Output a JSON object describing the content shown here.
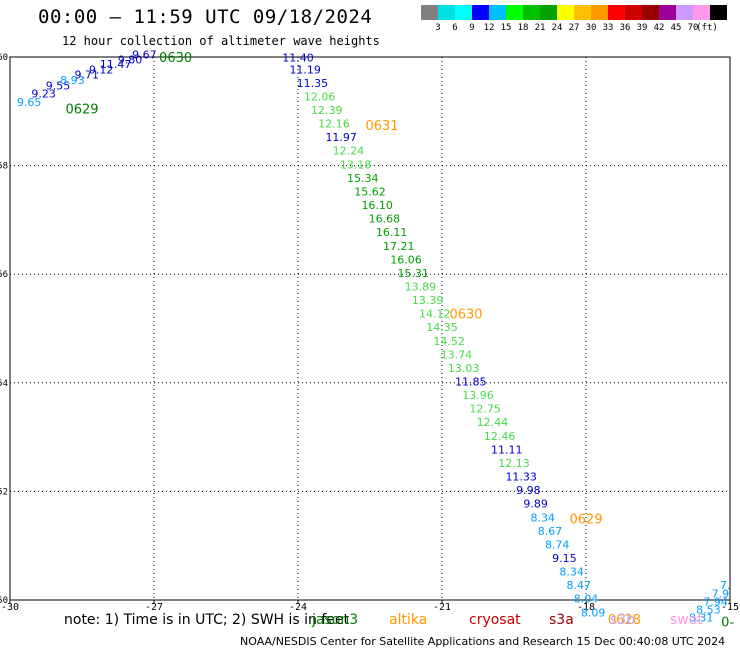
{
  "title": "00:00 – 11:59 UTC 09/18/2024",
  "subtitle": "12 hour collection of altimeter wave heights",
  "note": "note: 1) Time is in UTC; 2) SWH is in feet",
  "footer": "NOAA/NESDIS Center for Satellite Applications and Research   15 Dec 00:40:08 UTC 2024",
  "satellites": [
    {
      "name": "jason3",
      "color": "#008000"
    },
    {
      "name": "altika",
      "color": "#ff9900"
    },
    {
      "name": "cryosat",
      "color": "#cc0000"
    },
    {
      "name": "s3a",
      "color": "#990000"
    },
    {
      "name": "s3b",
      "color": "#c8a0ff"
    },
    {
      "name": "swot",
      "color": "#ff99dd"
    }
  ],
  "colorbar": {
    "unit_label": "(ft)",
    "ticks": [
      "3",
      "6",
      "9",
      "12",
      "15",
      "18",
      "21",
      "24",
      "27",
      "30",
      "33",
      "36",
      "39",
      "42",
      "45",
      "70"
    ],
    "colors": [
      "#808080",
      "#00e0e0",
      "#00ffff",
      "#0000ff",
      "#00c0ff",
      "#00ff00",
      "#00c000",
      "#00a000",
      "#ffff00",
      "#ffc000",
      "#ff9900",
      "#ff0000",
      "#cc0000",
      "#990000",
      "#990099",
      "#cc99ff",
      "#ff99ee",
      "#000000"
    ]
  },
  "chart_data": {
    "type": "scatter",
    "x_ticks": [
      "-30",
      "-27",
      "-24",
      "-21",
      "-18",
      "-15"
    ],
    "y_ticks": [
      "50",
      "52",
      "54",
      "56",
      "58",
      "60"
    ],
    "xlim": [
      -30,
      -15
    ],
    "ylim": [
      50,
      60
    ],
    "grid": true,
    "value_labels": [
      {
        "lon": -29.6,
        "lat": 59.1,
        "text": "9.65",
        "color": "#00a0ff"
      },
      {
        "lon": -29.3,
        "lat": 59.25,
        "text": "9.23",
        "color": "#0000cc"
      },
      {
        "lon": -29.0,
        "lat": 59.4,
        "text": "9.55",
        "color": "#0000cc"
      },
      {
        "lon": -28.7,
        "lat": 59.5,
        "text": "8.93",
        "color": "#00a0ff"
      },
      {
        "lon": -28.4,
        "lat": 59.6,
        "text": "9.71",
        "color": "#0000cc"
      },
      {
        "lon": -28.1,
        "lat": 59.7,
        "text": "9.12",
        "color": "#0000cc"
      },
      {
        "lon": -27.8,
        "lat": 59.8,
        "text": "11.47",
        "color": "#0000cc"
      },
      {
        "lon": -27.5,
        "lat": 59.88,
        "text": "9.80",
        "color": "#0000cc"
      },
      {
        "lon": -27.2,
        "lat": 59.97,
        "text": "9.67",
        "color": "#0000cc"
      },
      {
        "lon": -24.0,
        "lat": 59.92,
        "text": "11.40",
        "color": "#0000cc"
      },
      {
        "lon": -23.85,
        "lat": 59.7,
        "text": "11.19",
        "color": "#0000cc"
      },
      {
        "lon": -23.7,
        "lat": 59.45,
        "text": "11.35",
        "color": "#0000cc"
      },
      {
        "lon": -23.55,
        "lat": 59.2,
        "text": "12.06",
        "color": "#44dd44"
      },
      {
        "lon": -23.4,
        "lat": 58.95,
        "text": "12.39",
        "color": "#44dd44"
      },
      {
        "lon": -23.25,
        "lat": 58.7,
        "text": "12.16",
        "color": "#44dd44"
      },
      {
        "lon": -23.1,
        "lat": 58.45,
        "text": "11.97",
        "color": "#0000cc"
      },
      {
        "lon": -22.95,
        "lat": 58.2,
        "text": "12.24",
        "color": "#44dd44"
      },
      {
        "lon": -22.8,
        "lat": 57.95,
        "text": "13.18",
        "color": "#44dd44"
      },
      {
        "lon": -22.65,
        "lat": 57.7,
        "text": "15.34",
        "color": "#00a000"
      },
      {
        "lon": -22.5,
        "lat": 57.45,
        "text": "15.62",
        "color": "#00a000"
      },
      {
        "lon": -22.35,
        "lat": 57.2,
        "text": "16.10",
        "color": "#00a000"
      },
      {
        "lon": -22.2,
        "lat": 56.95,
        "text": "16.68",
        "color": "#00a000"
      },
      {
        "lon": -22.05,
        "lat": 56.7,
        "text": "16.11",
        "color": "#00a000"
      },
      {
        "lon": -21.9,
        "lat": 56.45,
        "text": "17.21",
        "color": "#00a000"
      },
      {
        "lon": -21.75,
        "lat": 56.2,
        "text": "16.06",
        "color": "#00a000"
      },
      {
        "lon": -21.6,
        "lat": 55.95,
        "text": "15.31",
        "color": "#00a000"
      },
      {
        "lon": -21.45,
        "lat": 55.7,
        "text": "13.89",
        "color": "#44dd44"
      },
      {
        "lon": -21.3,
        "lat": 55.45,
        "text": "13.39",
        "color": "#44dd44"
      },
      {
        "lon": -21.15,
        "lat": 55.2,
        "text": "14.12",
        "color": "#44dd44"
      },
      {
        "lon": -21.0,
        "lat": 54.95,
        "text": "14.35",
        "color": "#44dd44"
      },
      {
        "lon": -20.85,
        "lat": 54.7,
        "text": "14.52",
        "color": "#44dd44"
      },
      {
        "lon": -20.7,
        "lat": 54.45,
        "text": "13.74",
        "color": "#44dd44"
      },
      {
        "lon": -20.55,
        "lat": 54.2,
        "text": "13.03",
        "color": "#44dd44"
      },
      {
        "lon": -20.4,
        "lat": 53.95,
        "text": "11.85",
        "color": "#0000cc"
      },
      {
        "lon": -20.25,
        "lat": 53.7,
        "text": "13.96",
        "color": "#44dd44"
      },
      {
        "lon": -20.1,
        "lat": 53.45,
        "text": "12.75",
        "color": "#44dd44"
      },
      {
        "lon": -19.95,
        "lat": 53.2,
        "text": "12.44",
        "color": "#44dd44"
      },
      {
        "lon": -19.8,
        "lat": 52.95,
        "text": "12.46",
        "color": "#44dd44"
      },
      {
        "lon": -19.65,
        "lat": 52.7,
        "text": "11.11",
        "color": "#0000cc"
      },
      {
        "lon": -19.5,
        "lat": 52.45,
        "text": "12.13",
        "color": "#44dd44"
      },
      {
        "lon": -19.35,
        "lat": 52.2,
        "text": "11.33",
        "color": "#0000cc"
      },
      {
        "lon": -19.2,
        "lat": 51.95,
        "text": "9.98",
        "color": "#0000cc"
      },
      {
        "lon": -19.05,
        "lat": 51.7,
        "text": "9.89",
        "color": "#0000cc"
      },
      {
        "lon": -18.9,
        "lat": 51.45,
        "text": "8.34",
        "color": "#00a0ff"
      },
      {
        "lon": -18.75,
        "lat": 51.2,
        "text": "8.67",
        "color": "#00a0ff"
      },
      {
        "lon": -18.6,
        "lat": 50.95,
        "text": "8.74",
        "color": "#00a0ff"
      },
      {
        "lon": -18.45,
        "lat": 50.7,
        "text": "9.15",
        "color": "#0000cc"
      },
      {
        "lon": -18.3,
        "lat": 50.45,
        "text": "8.34",
        "color": "#00a0ff"
      },
      {
        "lon": -18.15,
        "lat": 50.2,
        "text": "8.47",
        "color": "#00a0ff"
      },
      {
        "lon": -18.0,
        "lat": 49.95,
        "text": "8.04",
        "color": "#00a0ff"
      },
      {
        "lon": -17.85,
        "lat": 49.7,
        "text": "8.09",
        "color": "#00a0ff"
      },
      {
        "lon": -15.1,
        "lat": 50.2,
        "text": "7.",
        "color": "#00a0ff"
      },
      {
        "lon": -15.2,
        "lat": 50.05,
        "text": "7.9",
        "color": "#00a0ff"
      },
      {
        "lon": -15.3,
        "lat": 49.9,
        "text": "7.94",
        "color": "#00a0ff"
      },
      {
        "lon": -15.45,
        "lat": 49.75,
        "text": "8.53",
        "color": "#00a0ff"
      },
      {
        "lon": -15.6,
        "lat": 49.6,
        "text": "8.31",
        "color": "#00a0ff"
      }
    ],
    "time_labels": [
      {
        "lon": -28.5,
        "lat": 59.05,
        "text": "0629",
        "color": "#008000"
      },
      {
        "lon": -26.55,
        "lat": 60.0,
        "text": "0630",
        "color": "#008000"
      },
      {
        "lon": -22.25,
        "lat": 58.75,
        "text": "0631",
        "color": "#ff9900"
      },
      {
        "lon": -20.5,
        "lat": 55.28,
        "text": "0630",
        "color": "#ff9900"
      },
      {
        "lon": -18.0,
        "lat": 51.5,
        "text": "0629",
        "color": "#ff9900"
      },
      {
        "lon": -17.2,
        "lat": 49.65,
        "text": "0628",
        "color": "#ff9900"
      },
      {
        "lon": -15.05,
        "lat": 49.6,
        "text": "0-",
        "color": "#008000"
      }
    ]
  }
}
